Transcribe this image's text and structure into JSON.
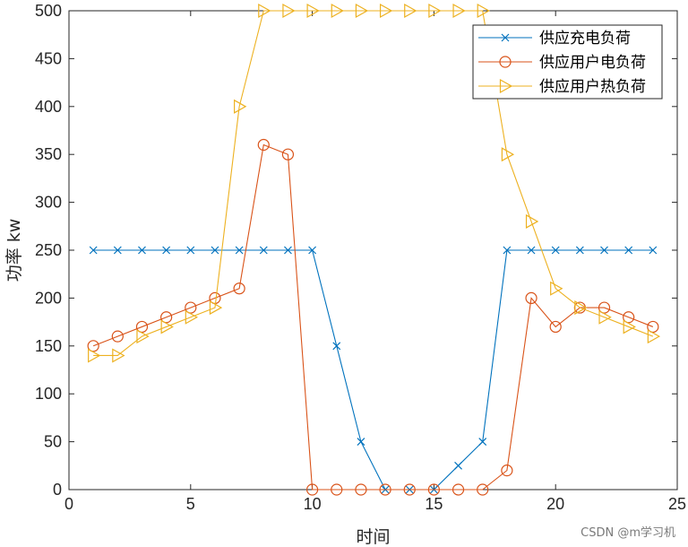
{
  "chart_data": {
    "type": "line",
    "title": "",
    "xlabel": "时间",
    "ylabel": "功率 kw",
    "xlim": [
      0,
      25
    ],
    "ylim": [
      0,
      500
    ],
    "xticks": [
      0,
      5,
      10,
      15,
      20,
      25
    ],
    "yticks": [
      0,
      50,
      100,
      150,
      200,
      250,
      300,
      350,
      400,
      450,
      500
    ],
    "grid": false,
    "legend_position": "top-right",
    "x": [
      1,
      2,
      3,
      4,
      5,
      6,
      7,
      8,
      9,
      10,
      11,
      12,
      13,
      14,
      15,
      16,
      17,
      18,
      19,
      20,
      21,
      22,
      23,
      24
    ],
    "series": [
      {
        "name": "供应充电负荷",
        "color": "#0072BD",
        "marker": "x",
        "values": [
          250,
          250,
          250,
          250,
          250,
          250,
          250,
          250,
          250,
          250,
          150,
          50,
          0,
          0,
          0,
          25,
          50,
          250,
          250,
          250,
          250,
          250,
          250,
          250
        ]
      },
      {
        "name": "供应用户电负荷",
        "color": "#D95319",
        "marker": "o",
        "values": [
          150,
          160,
          170,
          180,
          190,
          200,
          210,
          360,
          350,
          0,
          0,
          0,
          0,
          0,
          0,
          0,
          0,
          20,
          200,
          170,
          190,
          190,
          180,
          170
        ]
      },
      {
        "name": "供应用户热负荷",
        "color": "#EDB120",
        "marker": ">",
        "values": [
          140,
          140,
          160,
          170,
          180,
          190,
          400,
          500,
          500,
          500,
          500,
          500,
          500,
          500,
          500,
          500,
          500,
          350,
          280,
          210,
          190,
          180,
          170,
          160
        ]
      }
    ]
  },
  "watermark": "CSDN @m学习机"
}
